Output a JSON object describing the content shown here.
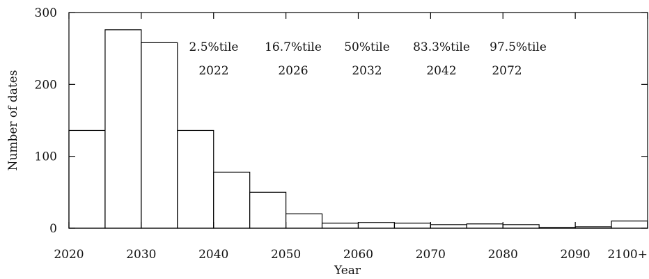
{
  "chart_data": {
    "type": "bar",
    "xlabel": "Year",
    "ylabel": "Number of dates",
    "ylim": [
      0,
      300
    ],
    "xlim": [
      2020,
      2100
    ],
    "x_tick_values": [
      2020,
      2030,
      2040,
      2050,
      2060,
      2070,
      2080,
      2090,
      2100
    ],
    "x_tick_labels": [
      "2020",
      "2030",
      "2040",
      "2050",
      "2060",
      "2070",
      "2080",
      "2090",
      "2100+"
    ],
    "y_ticks": [
      0,
      100,
      200,
      300
    ],
    "grid": false,
    "bins": [
      {
        "start": 2020,
        "end": 2025,
        "value": 136
      },
      {
        "start": 2025,
        "end": 2030,
        "value": 276
      },
      {
        "start": 2030,
        "end": 2035,
        "value": 258
      },
      {
        "start": 2035,
        "end": 2040,
        "value": 136
      },
      {
        "start": 2040,
        "end": 2045,
        "value": 78
      },
      {
        "start": 2045,
        "end": 2050,
        "value": 50
      },
      {
        "start": 2050,
        "end": 2055,
        "value": 20
      },
      {
        "start": 2055,
        "end": 2060,
        "value": 7
      },
      {
        "start": 2060,
        "end": 2065,
        "value": 8
      },
      {
        "start": 2065,
        "end": 2070,
        "value": 7
      },
      {
        "start": 2070,
        "end": 2075,
        "value": 5
      },
      {
        "start": 2075,
        "end": 2080,
        "value": 6
      },
      {
        "start": 2080,
        "end": 2085,
        "value": 5
      },
      {
        "start": 2085,
        "end": 2090,
        "value": 1
      },
      {
        "start": 2090,
        "end": 2095,
        "value": 2
      },
      {
        "start": 2095,
        "end": 2100,
        "value": 10
      }
    ],
    "annotations": [
      {
        "label": "2.5%tile",
        "year": "2022"
      },
      {
        "label": "16.7%tile",
        "year": "2026"
      },
      {
        "label": "50%tile",
        "year": "2032"
      },
      {
        "label": "83.3%tile",
        "year": "2042"
      },
      {
        "label": "97.5%tile",
        "year": "2072"
      }
    ]
  }
}
